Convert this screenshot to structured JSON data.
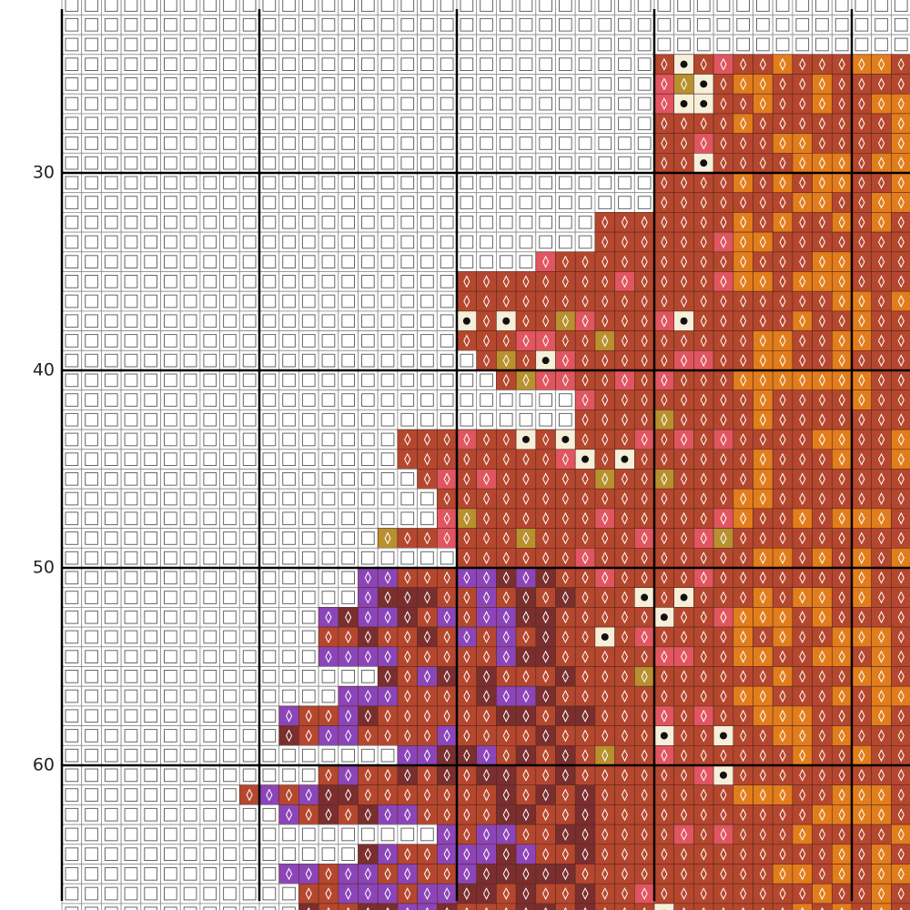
{
  "row_numbers": [
    30,
    40,
    50,
    60
  ]
}
